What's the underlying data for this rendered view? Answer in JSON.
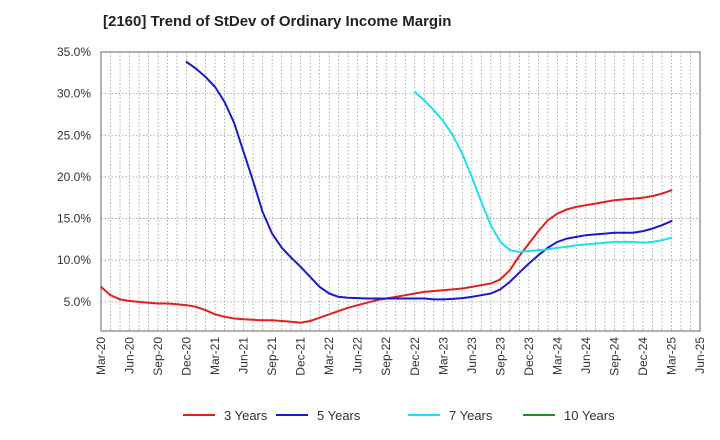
{
  "chart_data": {
    "type": "line",
    "title": "[2160]  Trend of StDev of Ordinary Income Margin",
    "xlabel": "",
    "ylabel": "",
    "ylim": [
      1.5,
      35.0
    ],
    "xlim": [
      "2020-03",
      "2025-06"
    ],
    "y_ticks": [
      5.0,
      10.0,
      15.0,
      20.0,
      25.0,
      30.0,
      35.0
    ],
    "y_tick_labels": [
      "5.0%",
      "10.0%",
      "15.0%",
      "20.0%",
      "25.0%",
      "30.0%",
      "35.0%"
    ],
    "x_ticks": [
      "2020-03",
      "2020-06",
      "2020-09",
      "2020-12",
      "2021-03",
      "2021-06",
      "2021-09",
      "2021-12",
      "2022-03",
      "2022-06",
      "2022-09",
      "2022-12",
      "2023-03",
      "2023-06",
      "2023-09",
      "2023-12",
      "2024-03",
      "2024-06",
      "2024-09",
      "2024-12",
      "2025-03",
      "2025-06"
    ],
    "x_tick_labels": [
      "Mar-20",
      "Jun-20",
      "Sep-20",
      "Dec-20",
      "Mar-21",
      "Jun-21",
      "Sep-21",
      "Dec-21",
      "Mar-22",
      "Jun-22",
      "Sep-22",
      "Dec-22",
      "Mar-23",
      "Jun-23",
      "Sep-23",
      "Dec-23",
      "Mar-24",
      "Jun-24",
      "Sep-24",
      "Dec-24",
      "Mar-25",
      "Jun-25"
    ],
    "grid": true,
    "legend_position": "bottom",
    "series": [
      {
        "name": "3 Years",
        "color": "#e02020",
        "x": [
          "2020-03",
          "2020-04",
          "2020-05",
          "2020-06",
          "2020-07",
          "2020-08",
          "2020-09",
          "2020-10",
          "2020-11",
          "2020-12",
          "2021-01",
          "2021-02",
          "2021-03",
          "2021-04",
          "2021-05",
          "2021-06",
          "2021-07",
          "2021-08",
          "2021-09",
          "2021-10",
          "2021-11",
          "2021-12",
          "2022-01",
          "2022-02",
          "2022-03",
          "2022-04",
          "2022-05",
          "2022-06",
          "2022-07",
          "2022-08",
          "2022-09",
          "2022-10",
          "2022-11",
          "2022-12",
          "2023-01",
          "2023-02",
          "2023-03",
          "2023-04",
          "2023-05",
          "2023-06",
          "2023-07",
          "2023-08",
          "2023-09",
          "2023-10",
          "2023-11",
          "2023-12",
          "2024-01",
          "2024-02",
          "2024-03",
          "2024-04",
          "2024-05",
          "2024-06",
          "2024-07",
          "2024-08",
          "2024-09",
          "2024-10",
          "2024-11",
          "2024-12",
          "2025-01",
          "2025-02",
          "2025-03"
        ],
        "values": [
          6.8,
          5.8,
          5.3,
          5.1,
          5.0,
          4.9,
          4.8,
          4.8,
          4.7,
          4.6,
          4.4,
          4.0,
          3.5,
          3.2,
          3.0,
          2.9,
          2.85,
          2.8,
          2.8,
          2.7,
          2.6,
          2.5,
          2.7,
          3.1,
          3.5,
          3.9,
          4.3,
          4.6,
          4.9,
          5.2,
          5.4,
          5.6,
          5.8,
          6.0,
          6.2,
          6.3,
          6.4,
          6.5,
          6.6,
          6.8,
          7.0,
          7.2,
          7.7,
          8.8,
          10.5,
          12.0,
          13.5,
          14.8,
          15.6,
          16.1,
          16.4,
          16.6,
          16.8,
          17.0,
          17.2,
          17.3,
          17.4,
          17.5,
          17.7,
          18.0,
          18.4
        ]
      },
      {
        "name": "5 Years",
        "color": "#1a1acc",
        "x": [
          "2020-12",
          "2021-01",
          "2021-02",
          "2021-03",
          "2021-04",
          "2021-05",
          "2021-06",
          "2021-07",
          "2021-08",
          "2021-09",
          "2021-10",
          "2021-11",
          "2021-12",
          "2022-01",
          "2022-02",
          "2022-03",
          "2022-04",
          "2022-05",
          "2022-06",
          "2022-07",
          "2022-08",
          "2022-09",
          "2022-10",
          "2022-11",
          "2022-12",
          "2023-01",
          "2023-02",
          "2023-03",
          "2023-04",
          "2023-05",
          "2023-06",
          "2023-07",
          "2023-08",
          "2023-09",
          "2023-10",
          "2023-11",
          "2023-12",
          "2024-01",
          "2024-02",
          "2024-03",
          "2024-04",
          "2024-05",
          "2024-06",
          "2024-07",
          "2024-08",
          "2024-09",
          "2024-10",
          "2024-11",
          "2024-12",
          "2025-01",
          "2025-02",
          "2025-03"
        ],
        "values": [
          33.8,
          33.0,
          32.0,
          30.8,
          29.0,
          26.5,
          23.0,
          19.5,
          15.8,
          13.2,
          11.5,
          10.3,
          9.2,
          8.0,
          6.8,
          6.0,
          5.6,
          5.5,
          5.45,
          5.4,
          5.4,
          5.4,
          5.4,
          5.4,
          5.4,
          5.4,
          5.3,
          5.3,
          5.35,
          5.45,
          5.6,
          5.8,
          6.0,
          6.5,
          7.4,
          8.5,
          9.6,
          10.6,
          11.5,
          12.2,
          12.6,
          12.8,
          13.0,
          13.1,
          13.2,
          13.3,
          13.3,
          13.3,
          13.5,
          13.8,
          14.2,
          14.7
        ]
      },
      {
        "name": "7 Years",
        "color": "#1ee0ee",
        "x": [
          "2022-12",
          "2023-01",
          "2023-02",
          "2023-03",
          "2023-04",
          "2023-05",
          "2023-06",
          "2023-07",
          "2023-08",
          "2023-09",
          "2023-10",
          "2023-11",
          "2023-12",
          "2024-01",
          "2024-02",
          "2024-03",
          "2024-04",
          "2024-05",
          "2024-06",
          "2024-07",
          "2024-08",
          "2024-09",
          "2024-10",
          "2024-11",
          "2024-12",
          "2025-01",
          "2025-02",
          "2025-03"
        ],
        "values": [
          30.2,
          29.2,
          28.0,
          26.7,
          25.0,
          22.8,
          20.0,
          17.0,
          14.2,
          12.2,
          11.2,
          11.0,
          11.1,
          11.2,
          11.3,
          11.5,
          11.6,
          11.8,
          11.9,
          12.0,
          12.1,
          12.2,
          12.2,
          12.2,
          12.1,
          12.2,
          12.4,
          12.7
        ]
      },
      {
        "name": "10 Years",
        "color": "#228b22",
        "x": [],
        "values": []
      }
    ]
  }
}
